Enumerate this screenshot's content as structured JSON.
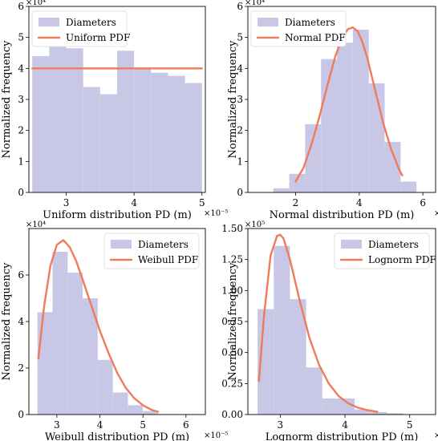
{
  "colors": {
    "histogram": "#c8c8e6",
    "pdf": "#f07a5a"
  },
  "chart_data": [
    {
      "type": "bar",
      "xlabel": "Uniform distribution PD (m)",
      "x_exponent": "×10⁻⁵",
      "ylabel": "Normalized frequency",
      "y_exponent": "×10⁴",
      "xlim": [
        2.45,
        5.05
      ],
      "ylim": [
        0,
        6
      ],
      "xticks": [
        3,
        4,
        5
      ],
      "xtick_labels": [
        "3",
        "4",
        "5"
      ],
      "yticks": [
        0,
        1,
        2,
        3,
        4,
        5,
        6
      ],
      "ytick_labels": [
        "0",
        "1",
        "2",
        "3",
        "4",
        "5",
        "6"
      ],
      "legend": [
        "Diameters",
        "Uniform PDF"
      ],
      "legend_position": "top-left",
      "histogram": {
        "bin_edges": [
          2.5,
          2.75,
          3.0,
          3.25,
          3.5,
          3.75,
          4.0,
          4.25,
          4.5,
          4.75,
          5.0
        ],
        "values": [
          4.4,
          4.7,
          4.65,
          3.4,
          3.17,
          4.57,
          4.0,
          3.86,
          3.76,
          3.53
        ]
      },
      "pdf": {
        "x": [
          2.5,
          5.0
        ],
        "y": [
          4.0,
          4.0
        ]
      }
    },
    {
      "type": "bar",
      "xlabel": "Normal distribution PD (m)",
      "x_exponent": "×10⁻⁵",
      "ylabel": "Normalized frequency",
      "y_exponent": "×10⁴",
      "xlim": [
        0.5,
        6.4
      ],
      "ylim": [
        0,
        6
      ],
      "xticks": [
        2,
        4,
        6
      ],
      "xtick_labels": [
        "2",
        "4",
        "6"
      ],
      "yticks": [
        0,
        1,
        2,
        3,
        4,
        5,
        6
      ],
      "ytick_labels": [
        "0",
        "1",
        "2",
        "3",
        "4",
        "5",
        "6"
      ],
      "legend": [
        "Diameters",
        "Normal PDF"
      ],
      "legend_position": "top-left",
      "histogram": {
        "bin_edges": [
          1.3,
          1.8,
          2.3,
          2.8,
          3.3,
          3.8,
          4.3,
          4.8,
          5.3,
          5.8
        ],
        "values": [
          0.13,
          0.6,
          2.2,
          4.3,
          4.83,
          5.25,
          3.52,
          1.63,
          0.35
        ]
      },
      "pdf": {
        "x": [
          2.0,
          2.25,
          2.5,
          2.75,
          3.0,
          3.25,
          3.5,
          3.65,
          3.8,
          3.95,
          4.1,
          4.25,
          4.5,
          4.75,
          5.0,
          5.25,
          5.35
        ],
        "y": [
          0.35,
          0.8,
          1.55,
          2.45,
          3.45,
          4.4,
          5.05,
          5.27,
          5.32,
          5.2,
          4.85,
          4.35,
          3.3,
          2.25,
          1.4,
          0.75,
          0.55
        ]
      }
    },
    {
      "type": "bar",
      "xlabel": "Weibull distribution PD (m)",
      "x_exponent": "×10⁻⁵",
      "ylabel": "Normalized frequency",
      "y_exponent": "×10⁴",
      "xlim": [
        2.35,
        6.45
      ],
      "ylim": [
        0,
        8
      ],
      "xticks": [
        3,
        4,
        5,
        6
      ],
      "xtick_labels": [
        "3",
        "4",
        "5",
        "6"
      ],
      "yticks": [
        0,
        2,
        4,
        6
      ],
      "ytick_labels": [
        "0",
        "2",
        "4",
        "6"
      ],
      "legend": [
        "Diameters",
        "Weibull PDF"
      ],
      "legend_position": "top-right",
      "histogram": {
        "bin_edges": [
          2.55,
          2.9,
          3.25,
          3.6,
          3.95,
          4.3,
          4.65,
          5.0,
          5.35,
          5.7,
          6.05
        ],
        "values": [
          4.4,
          7.0,
          6.1,
          5.0,
          2.35,
          0.95,
          0.4,
          0.15,
          0.02,
          0.01
        ]
      },
      "pdf": {
        "x": [
          2.57,
          2.7,
          2.85,
          3.0,
          3.15,
          3.3,
          3.45,
          3.6,
          3.8,
          4.0,
          4.2,
          4.4,
          4.6,
          4.8,
          5.0,
          5.2,
          5.35
        ],
        "y": [
          2.4,
          4.6,
          6.4,
          7.3,
          7.5,
          7.2,
          6.6,
          5.8,
          4.7,
          3.6,
          2.65,
          1.8,
          1.15,
          0.7,
          0.4,
          0.2,
          0.12
        ]
      }
    },
    {
      "type": "bar",
      "xlabel": "Lognorm distribution PD (m)",
      "x_exponent": "×10⁻⁵",
      "ylabel": "Normalized frequency",
      "y_exponent": "×10⁵",
      "xlim": [
        2.5,
        5.4
      ],
      "ylim": [
        0,
        1.5
      ],
      "xticks": [
        3,
        4,
        5
      ],
      "xtick_labels": [
        "3",
        "4",
        "5"
      ],
      "yticks": [
        0,
        0.25,
        0.5,
        0.75,
        1.0,
        1.25,
        1.5
      ],
      "ytick_labels": [
        "0.00",
        "0.25",
        "0.50",
        "0.75",
        "1.00",
        "1.25",
        "1.50"
      ],
      "legend": [
        "Diameters",
        "Lognorm PDF"
      ],
      "legend_position": "top-right",
      "histogram": {
        "bin_edges": [
          2.65,
          2.9,
          3.15,
          3.4,
          3.65,
          3.9,
          4.15,
          4.4,
          4.65,
          4.9,
          5.15
        ],
        "values": [
          0.85,
          1.36,
          0.93,
          0.38,
          0.13,
          0.13,
          0.04,
          0.02,
          0.01,
          0.0
        ]
      },
      "pdf": {
        "x": [
          2.67,
          2.75,
          2.85,
          2.95,
          3.0,
          3.05,
          3.15,
          3.3,
          3.45,
          3.6,
          3.75,
          3.9,
          4.05,
          4.2,
          4.35,
          4.5
        ],
        "y": [
          0.27,
          0.8,
          1.28,
          1.44,
          1.45,
          1.42,
          1.25,
          0.92,
          0.62,
          0.4,
          0.25,
          0.15,
          0.09,
          0.055,
          0.035,
          0.022
        ]
      }
    }
  ]
}
